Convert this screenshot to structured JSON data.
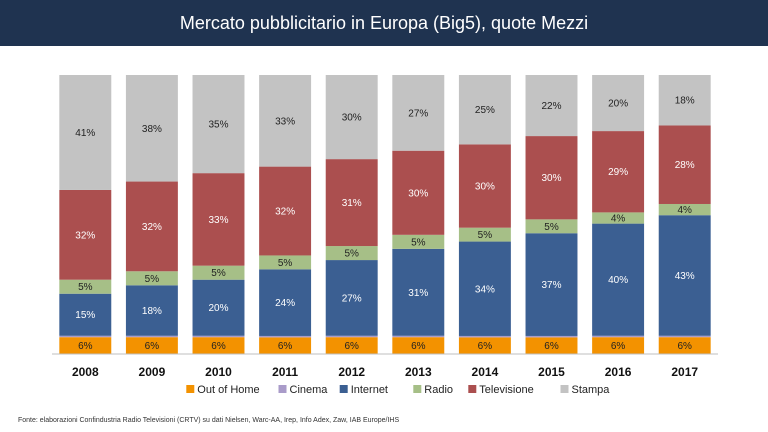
{
  "header": {
    "title": "Mercato pubblicitario in Europa (Big5), quote Mezzi",
    "background": "#1f3350"
  },
  "chart_data": {
    "type": "stacked-bar-100",
    "categories": [
      "2008",
      "2009",
      "2010",
      "2011",
      "2012",
      "2013",
      "2014",
      "2015",
      "2016",
      "2017"
    ],
    "series": [
      {
        "name": "Out of Home",
        "color": "#f39200",
        "values": [
          6,
          6,
          6,
          6,
          6,
          6,
          6,
          6,
          6,
          6
        ],
        "labels": [
          "6%",
          "6%",
          "6%",
          "6%",
          "6%",
          "6%",
          "6%",
          "6%",
          "6%",
          "6%"
        ]
      },
      {
        "name": "Cinema",
        "color": "#a99bc9",
        "values": [
          0.5,
          0.5,
          0.5,
          0.5,
          0.5,
          0.5,
          0.5,
          0.5,
          0.5,
          0.5
        ],
        "labels": [
          "",
          "",
          "",
          "",
          "",
          "",
          "",
          "",
          "",
          ""
        ]
      },
      {
        "name": "Internet",
        "color": "#3b5f92",
        "values": [
          15,
          18,
          20,
          24,
          27,
          31,
          34,
          37,
          40,
          43
        ],
        "labels": [
          "15%",
          "18%",
          "20%",
          "24%",
          "27%",
          "31%",
          "34%",
          "37%",
          "40%",
          "43%"
        ]
      },
      {
        "name": "Radio",
        "color": "#a6bf87",
        "values": [
          5,
          5,
          5,
          5,
          5,
          5,
          5,
          5,
          4,
          4
        ],
        "labels": [
          "5%",
          "5%",
          "5%",
          "5%",
          "5%",
          "5%",
          "5%",
          "5%",
          "4%",
          "4%"
        ]
      },
      {
        "name": "Televisione",
        "color": "#ab4f4f",
        "values": [
          32,
          32,
          33,
          32,
          31,
          30,
          30,
          30,
          29,
          28
        ],
        "labels": [
          "32%",
          "32%",
          "33%",
          "32%",
          "31%",
          "30%",
          "30%",
          "30%",
          "29%",
          "28%"
        ]
      },
      {
        "name": "Stampa",
        "color": "#c3c3c3",
        "values": [
          41,
          38,
          35,
          33,
          30,
          27,
          25,
          22,
          20,
          18
        ],
        "labels": [
          "41%",
          "38%",
          "35%",
          "33%",
          "30%",
          "27%",
          "25%",
          "22%",
          "20%",
          "18%"
        ]
      }
    ],
    "ylim": [
      0,
      100
    ],
    "legend": "bottom"
  },
  "footer": {
    "source": "Fonte: elaborazioni Confindustria Radio Televisioni (CRTV) su dati Nielsen, Warc-AA, Irep, Info Adex, Zaw, IAB Europe/IHS"
  }
}
